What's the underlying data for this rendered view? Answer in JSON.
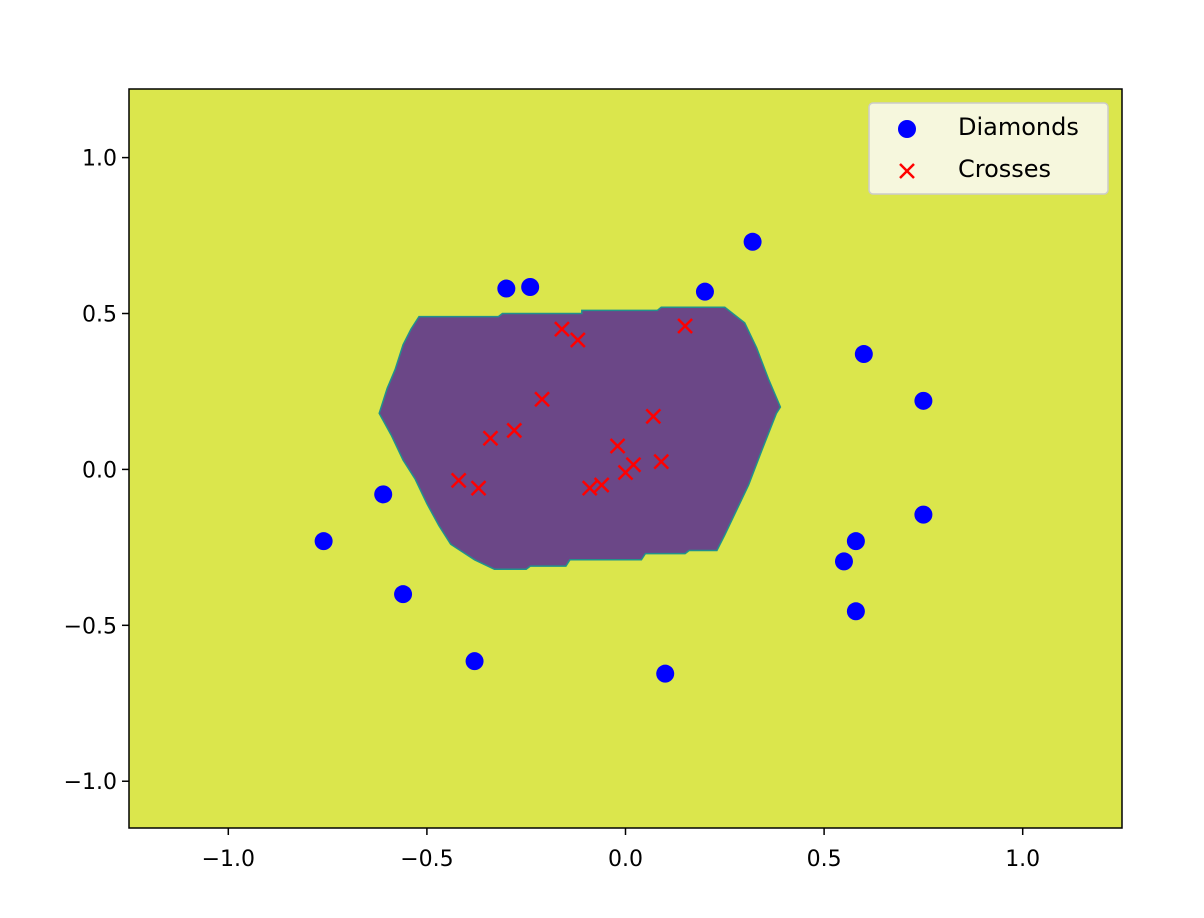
{
  "chart_data": {
    "type": "scatter",
    "title": "",
    "xlabel": "",
    "ylabel": "",
    "xlim": [
      -1.25,
      1.25
    ],
    "ylim": [
      -1.15,
      1.22
    ],
    "x_ticks": [
      -1.0,
      -0.5,
      0.0,
      0.5,
      1.0
    ],
    "x_tick_labels": [
      "−1.0",
      "−0.5",
      "0.0",
      "0.5",
      "1.0"
    ],
    "y_ticks": [
      1.0,
      0.5,
      0.0,
      -0.5,
      -1.0
    ],
    "y_tick_labels": [
      "1.0",
      "0.5",
      "0.0",
      "−0.5",
      "−1.0"
    ],
    "grid": false,
    "legend_position": "top-right",
    "background_color": "#dbe64c",
    "decision_region": {
      "color": "#6b4787",
      "edge_color": "#21918c",
      "boundary": [
        [
          -0.52,
          0.49
        ],
        [
          -0.32,
          0.49
        ],
        [
          -0.31,
          0.5
        ],
        [
          -0.11,
          0.5
        ],
        [
          -0.11,
          0.51
        ],
        [
          0.08,
          0.51
        ],
        [
          0.09,
          0.52
        ],
        [
          0.25,
          0.52
        ],
        [
          0.3,
          0.47
        ],
        [
          0.33,
          0.39
        ],
        [
          0.36,
          0.29
        ],
        [
          0.39,
          0.2
        ],
        [
          0.38,
          0.18
        ],
        [
          0.34,
          0.05
        ],
        [
          0.31,
          -0.05
        ],
        [
          0.28,
          -0.13
        ],
        [
          0.25,
          -0.21
        ],
        [
          0.23,
          -0.26
        ],
        [
          0.16,
          -0.26
        ],
        [
          0.15,
          -0.27
        ],
        [
          0.05,
          -0.27
        ],
        [
          0.04,
          -0.29
        ],
        [
          -0.14,
          -0.29
        ],
        [
          -0.15,
          -0.31
        ],
        [
          -0.24,
          -0.31
        ],
        [
          -0.25,
          -0.32
        ],
        [
          -0.33,
          -0.32
        ],
        [
          -0.38,
          -0.29
        ],
        [
          -0.44,
          -0.24
        ],
        [
          -0.47,
          -0.18
        ],
        [
          -0.5,
          -0.11
        ],
        [
          -0.53,
          -0.03
        ],
        [
          -0.56,
          0.03
        ],
        [
          -0.59,
          0.11
        ],
        [
          -0.62,
          0.18
        ],
        [
          -0.6,
          0.26
        ],
        [
          -0.58,
          0.32
        ],
        [
          -0.56,
          0.4
        ],
        [
          -0.54,
          0.45
        ]
      ]
    },
    "series": [
      {
        "name": "Diamonds",
        "marker": "circle",
        "color": "#0000ff",
        "points": [
          [
            -0.3,
            0.58
          ],
          [
            -0.24,
            0.585
          ],
          [
            0.2,
            0.57
          ],
          [
            0.32,
            0.73
          ],
          [
            0.6,
            0.37
          ],
          [
            0.75,
            0.22
          ],
          [
            -0.61,
            -0.08
          ],
          [
            -0.76,
            -0.23
          ],
          [
            -0.56,
            -0.4
          ],
          [
            -0.38,
            -0.615
          ],
          [
            0.1,
            -0.655
          ],
          [
            0.58,
            -0.23
          ],
          [
            0.55,
            -0.295
          ],
          [
            0.75,
            -0.145
          ],
          [
            0.58,
            -0.455
          ]
        ]
      },
      {
        "name": "Crosses",
        "marker": "x",
        "color": "#ff0000",
        "points": [
          [
            -0.16,
            0.45
          ],
          [
            -0.12,
            0.415
          ],
          [
            0.15,
            0.46
          ],
          [
            -0.21,
            0.225
          ],
          [
            -0.34,
            0.1
          ],
          [
            -0.28,
            0.125
          ],
          [
            -0.42,
            -0.035
          ],
          [
            -0.37,
            -0.06
          ],
          [
            -0.02,
            0.075
          ],
          [
            0.07,
            0.17
          ],
          [
            0.02,
            0.015
          ],
          [
            0.0,
            -0.01
          ],
          [
            0.09,
            0.025
          ],
          [
            -0.06,
            -0.05
          ],
          [
            -0.09,
            -0.06
          ]
        ]
      }
    ]
  }
}
